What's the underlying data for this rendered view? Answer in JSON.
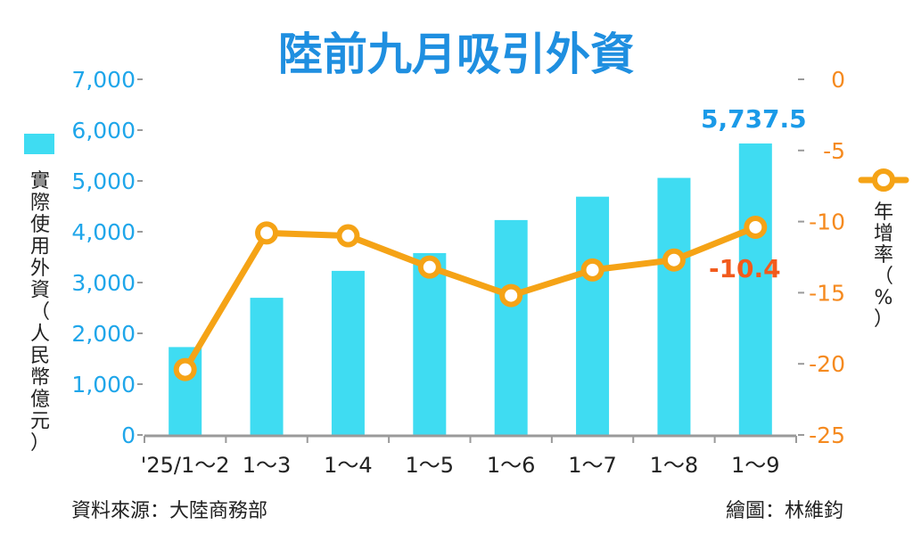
{
  "chart_data": {
    "type": "bar+line",
    "title": "陸前九月吸引外資",
    "categories": [
      "'25/1～2",
      "1～3",
      "1～4",
      "1～5",
      "1～6",
      "1～7",
      "1～8",
      "1～9"
    ],
    "series": [
      {
        "name": "實際使用外資（人民幣億元）",
        "type": "bar",
        "axis": "left",
        "values": [
          1730,
          2700,
          3230,
          3580,
          4230,
          4690,
          5060,
          5737.5
        ]
      },
      {
        "name": "年增率（%）",
        "type": "line",
        "axis": "right",
        "values": [
          -20.4,
          -10.8,
          -11.0,
          -13.2,
          -15.2,
          -13.4,
          -12.7,
          -10.4
        ]
      }
    ],
    "y_left": {
      "label": "實際使用外資（人民幣億元）",
      "ylim": [
        0,
        7000
      ],
      "ticks": [
        0,
        1000,
        2000,
        3000,
        4000,
        5000,
        6000,
        7000
      ],
      "tick_labels": [
        "0",
        "1,000",
        "2,000",
        "3,000",
        "4,000",
        "5,000",
        "6,000",
        "7,000"
      ]
    },
    "y_right": {
      "label": "年增率（%）",
      "ylim": [
        -25,
        0
      ],
      "ticks": [
        0,
        -5,
        -10,
        -15,
        -20,
        -25
      ],
      "tick_labels": [
        "0",
        "-5",
        "-10",
        "-15",
        "-20",
        "-25"
      ]
    },
    "annotations": {
      "last_bar_label": "5,737.5",
      "last_point_label": "-10.4"
    },
    "grid": false,
    "colors": {
      "title": "#1f8fe0",
      "bar": "#3fdcf2",
      "line": "#f5a316",
      "marker_fill": "#ffffff",
      "left_axis_text": "#1fa6ea",
      "right_axis_text": "#f58a1f",
      "last_point_label": "#f25a1c",
      "text": "#222222"
    }
  },
  "footer": {
    "source": "資料來源：大陸商務部",
    "credit": "繪圖：林維鈞"
  }
}
